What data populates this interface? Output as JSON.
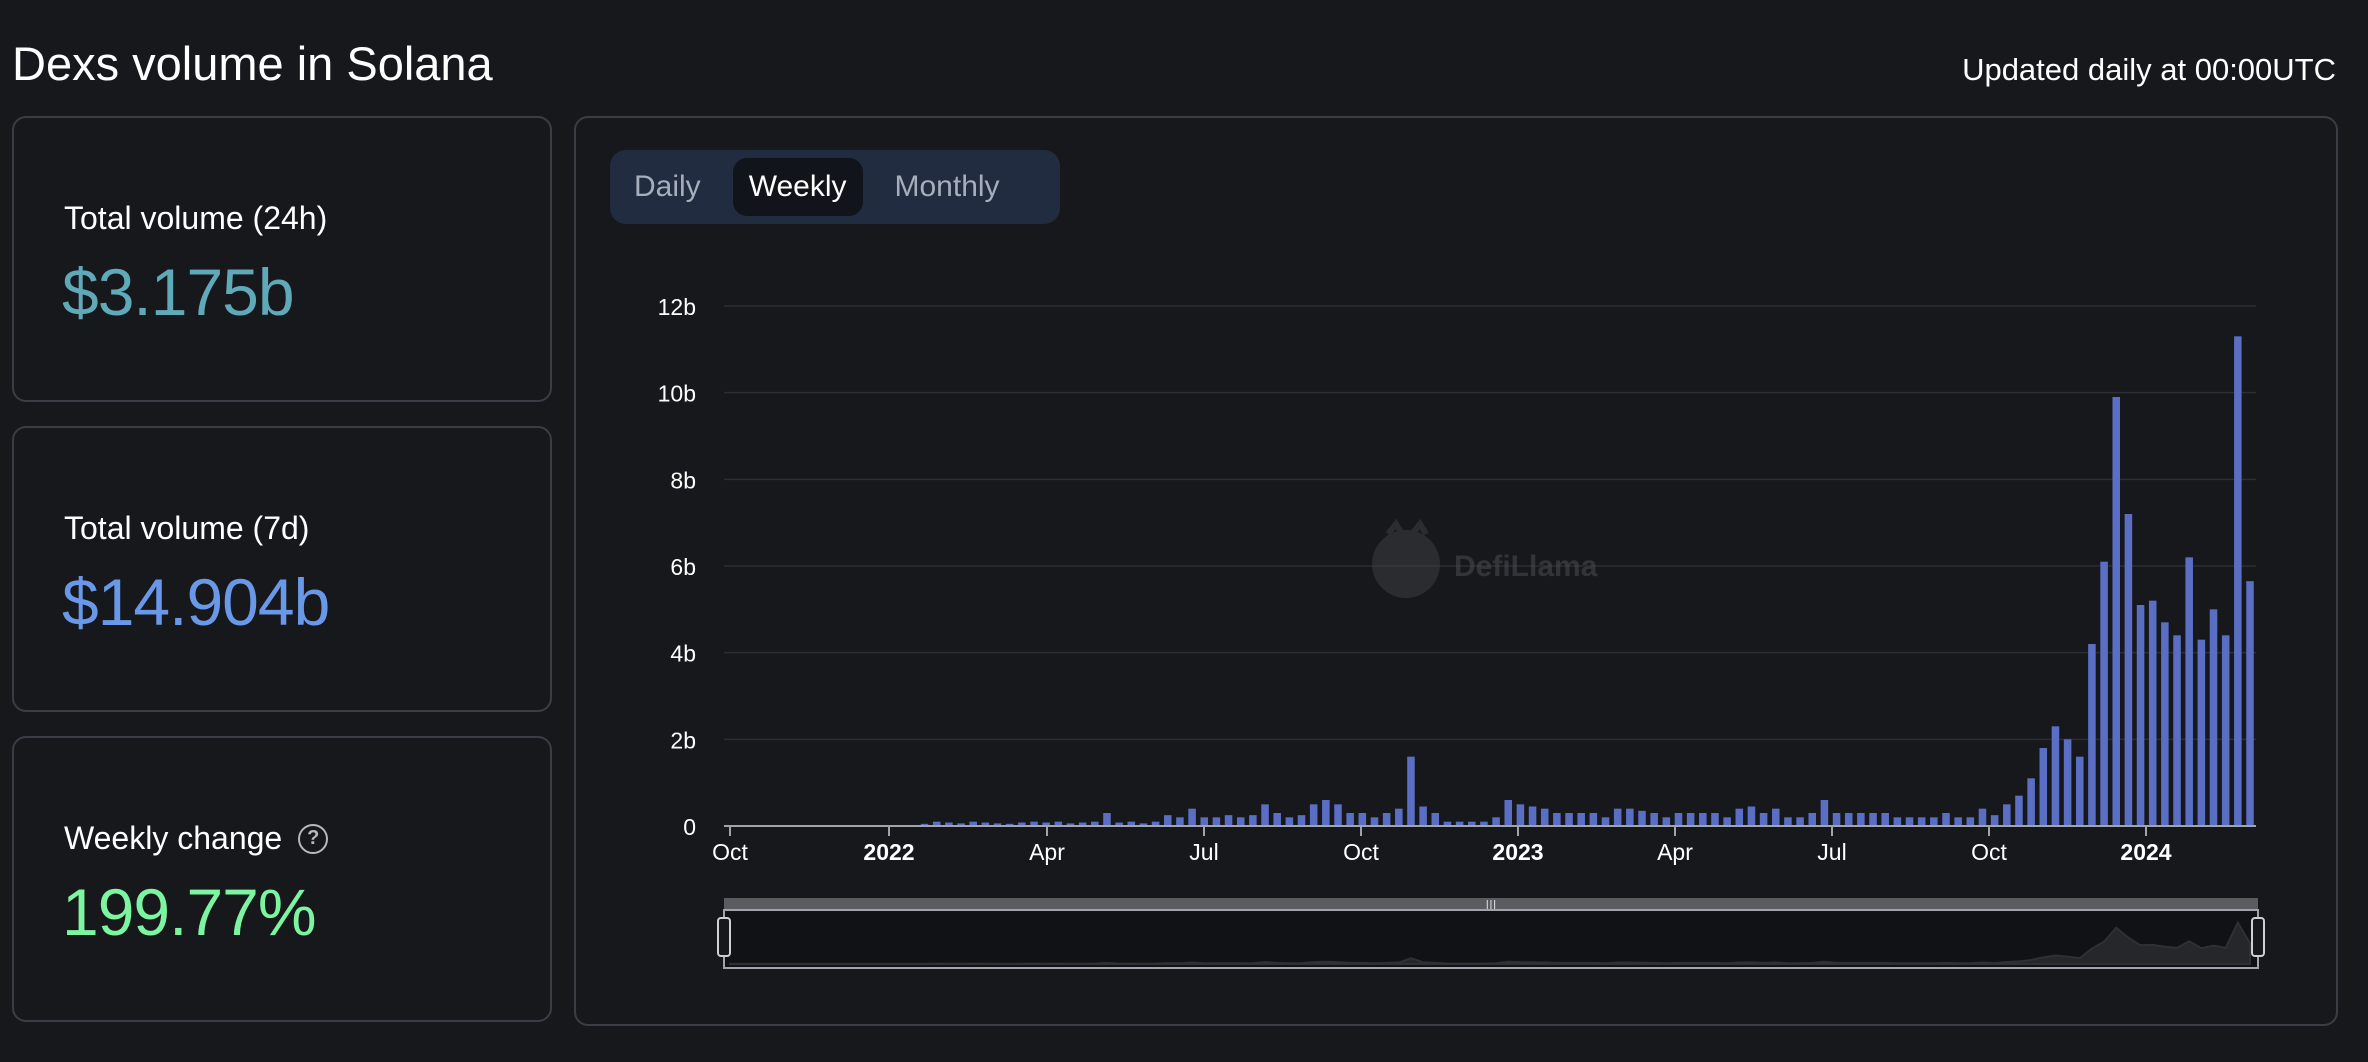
{
  "header": {
    "title": "Dexs volume in Solana",
    "updated": "Updated daily at 00:00UTC"
  },
  "stats": [
    {
      "label": "Total volume (24h)",
      "value": "$3.175b",
      "color": "#5fa9b9"
    },
    {
      "label": "Total volume (7d)",
      "value": "$14.904b",
      "color": "#6a98e8"
    },
    {
      "label": "Weekly change",
      "value": "199.77%",
      "color": "#7cf5a0"
    }
  ],
  "toggle": {
    "options": [
      "Daily",
      "Weekly",
      "Monthly"
    ],
    "selected": "Weekly"
  },
  "watermark": "DefiLlama",
  "chart_data": {
    "type": "bar",
    "interval": "weekly",
    "x_tick_labels": [
      "Oct",
      "2022",
      "Apr",
      "Jul",
      "Oct",
      "2023",
      "Apr",
      "Jul",
      "Oct",
      "2024"
    ],
    "bold_tick_labels": [
      "2022",
      "2023",
      "2024"
    ],
    "y_tick_labels": [
      "0",
      "2b",
      "4b",
      "6b",
      "8b",
      "10b",
      "12b"
    ],
    "ylim": [
      0,
      12
    ],
    "y_unit": "b",
    "bar_color": "#5a6fc4",
    "grid": true,
    "values": [
      0.02,
      0.02,
      0.02,
      0.02,
      0.02,
      0.02,
      0.02,
      0.02,
      0.02,
      0.02,
      0.02,
      0.02,
      0.02,
      0.02,
      0.02,
      0.02,
      0.05,
      0.1,
      0.08,
      0.06,
      0.1,
      0.08,
      0.06,
      0.05,
      0.08,
      0.1,
      0.08,
      0.1,
      0.06,
      0.08,
      0.1,
      0.3,
      0.08,
      0.1,
      0.06,
      0.1,
      0.25,
      0.2,
      0.4,
      0.2,
      0.2,
      0.25,
      0.2,
      0.25,
      0.5,
      0.3,
      0.2,
      0.25,
      0.5,
      0.6,
      0.5,
      0.3,
      0.3,
      0.2,
      0.3,
      0.4,
      1.6,
      0.45,
      0.3,
      0.1,
      0.1,
      0.1,
      0.1,
      0.2,
      0.6,
      0.5,
      0.45,
      0.4,
      0.3,
      0.3,
      0.3,
      0.3,
      0.2,
      0.4,
      0.4,
      0.35,
      0.3,
      0.2,
      0.3,
      0.3,
      0.3,
      0.3,
      0.2,
      0.4,
      0.45,
      0.3,
      0.4,
      0.2,
      0.2,
      0.3,
      0.6,
      0.3,
      0.3,
      0.3,
      0.3,
      0.3,
      0.2,
      0.2,
      0.2,
      0.2,
      0.3,
      0.2,
      0.2,
      0.4,
      0.25,
      0.5,
      0.7,
      1.1,
      1.8,
      2.3,
      2.0,
      1.6,
      4.2,
      6.1,
      9.9,
      7.2,
      5.1,
      5.2,
      4.7,
      4.4,
      6.2,
      4.3,
      5.0,
      4.4,
      11.3,
      5.65
    ]
  }
}
